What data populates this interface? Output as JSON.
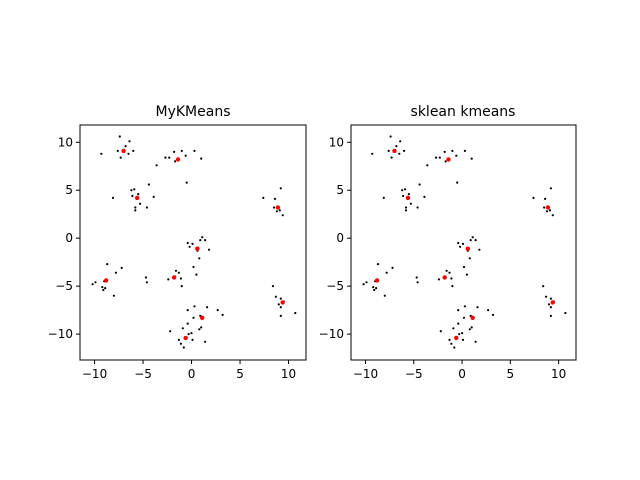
{
  "chart_data": [
    {
      "type": "scatter",
      "title": "MyKMeans",
      "xlabel": "",
      "ylabel": "",
      "xlim": [
        -11.5,
        11.8
      ],
      "ylim": [
        -12.7,
        11.8
      ],
      "xticks": [
        -10,
        -5,
        0,
        5,
        10
      ],
      "yticks": [
        10,
        5,
        0,
        -5,
        -10
      ],
      "grid": false,
      "series": [
        {
          "color": "#000000",
          "points": [
            [
              -7.4,
              10.6
            ],
            [
              -6.4,
              10.1
            ],
            [
              -9.3,
              8.8
            ],
            [
              -7.6,
              9.1
            ],
            [
              -7.1,
              9.1
            ],
            [
              -6.8,
              9.6
            ],
            [
              -6.5,
              8.8
            ],
            [
              -7.3,
              8.4
            ],
            [
              -6.0,
              9.1
            ],
            [
              -2.7,
              8.4
            ],
            [
              -2.3,
              8.4
            ],
            [
              -1.8,
              9.0
            ],
            [
              -1.4,
              8.3
            ],
            [
              -1.0,
              9.1
            ],
            [
              -0.6,
              8.6
            ],
            [
              -1.7,
              8.0
            ],
            [
              -3.6,
              7.6
            ],
            [
              0.3,
              9.1
            ],
            [
              1.0,
              8.3
            ],
            [
              -0.5,
              5.8
            ],
            [
              -5.9,
              5.1
            ],
            [
              -6.2,
              5.0
            ],
            [
              -5.5,
              4.6
            ],
            [
              -4.4,
              5.6
            ],
            [
              -6.1,
              4.4
            ],
            [
              -3.9,
              4.3
            ],
            [
              -5.3,
              3.6
            ],
            [
              -5.8,
              3.2
            ],
            [
              -4.6,
              3.2
            ],
            [
              -5.8,
              2.9
            ],
            [
              -8.1,
              4.2
            ],
            [
              7.4,
              4.2
            ],
            [
              9.2,
              5.2
            ],
            [
              8.6,
              4.1
            ],
            [
              8.5,
              3.2
            ],
            [
              8.8,
              2.8
            ],
            [
              9.1,
              2.9
            ],
            [
              9.4,
              2.4
            ],
            [
              -0.4,
              -0.5
            ],
            [
              0.1,
              -0.6
            ],
            [
              0.9,
              -0.2
            ],
            [
              1.1,
              0.1
            ],
            [
              1.4,
              -0.2
            ],
            [
              -0.2,
              -0.9
            ],
            [
              0.6,
              -1.3
            ],
            [
              1.8,
              -1.2
            ],
            [
              0.8,
              -2.1
            ],
            [
              0.2,
              -3.0
            ],
            [
              0.5,
              -3.8
            ],
            [
              -1.6,
              -3.4
            ],
            [
              -1.3,
              -3.6
            ],
            [
              -1.7,
              -4.0
            ],
            [
              -1.1,
              -4.2
            ],
            [
              -2.4,
              -4.3
            ],
            [
              -1.0,
              -5.0
            ],
            [
              -8.7,
              -2.7
            ],
            [
              -7.2,
              -3.1
            ],
            [
              -7.8,
              -3.6
            ],
            [
              -9.9,
              -4.6
            ],
            [
              -10.2,
              -4.8
            ],
            [
              -9.0,
              -4.5
            ],
            [
              -9.2,
              -5.1
            ],
            [
              -8.9,
              -5.2
            ],
            [
              -9.1,
              -5.4
            ],
            [
              -8.0,
              -6.0
            ],
            [
              -4.7,
              -4.1
            ],
            [
              -4.6,
              -4.6
            ],
            [
              8.4,
              -5.0
            ],
            [
              8.7,
              -6.1
            ],
            [
              9.2,
              -6.3
            ],
            [
              9.0,
              -6.9
            ],
            [
              9.5,
              -6.6
            ],
            [
              9.2,
              -7.2
            ],
            [
              9.2,
              -8.1
            ],
            [
              10.7,
              -7.8
            ],
            [
              -0.4,
              -7.5
            ],
            [
              0.3,
              -7.1
            ],
            [
              0.9,
              -8.1
            ],
            [
              1.6,
              -7.2
            ],
            [
              0.2,
              -8.3
            ],
            [
              -0.4,
              -8.9
            ],
            [
              -0.9,
              -9.4
            ],
            [
              -2.2,
              -9.7
            ],
            [
              1.0,
              -9.3
            ],
            [
              0.8,
              -9.5
            ],
            [
              0.0,
              -9.9
            ],
            [
              2.7,
              -7.5
            ],
            [
              3.2,
              -8.0
            ],
            [
              -1.3,
              -10.6
            ],
            [
              -0.6,
              -10.4
            ],
            [
              -1.1,
              -11.0
            ],
            [
              -0.8,
              -11.4
            ],
            [
              0.1,
              -10.6
            ],
            [
              1.4,
              -10.8
            ],
            [
              -0.3,
              -10.0
            ]
          ]
        },
        {
          "color": "#ff0000",
          "points": [
            [
              -7.0,
              9.1
            ],
            [
              -1.4,
              8.2
            ],
            [
              -5.6,
              4.2
            ],
            [
              8.9,
              3.2
            ],
            [
              0.6,
              -1.1
            ],
            [
              -1.8,
              -4.1
            ],
            [
              -8.8,
              -4.4
            ],
            [
              9.4,
              -6.7
            ],
            [
              1.1,
              -8.3
            ],
            [
              -0.6,
              -10.4
            ]
          ]
        }
      ]
    },
    {
      "type": "scatter",
      "title": "sklean kmeans",
      "xlabel": "",
      "ylabel": "",
      "xlim": [
        -11.5,
        11.8
      ],
      "ylim": [
        -12.7,
        11.8
      ],
      "xticks": [
        -10,
        -5,
        0,
        5,
        10
      ],
      "yticks": [
        10,
        5,
        0,
        -5,
        -10
      ],
      "grid": false,
      "series": [
        {
          "color": "#000000",
          "points": [
            [
              -7.4,
              10.6
            ],
            [
              -6.4,
              10.1
            ],
            [
              -9.3,
              8.8
            ],
            [
              -7.6,
              9.1
            ],
            [
              -7.1,
              9.1
            ],
            [
              -6.8,
              9.6
            ],
            [
              -6.5,
              8.8
            ],
            [
              -7.3,
              8.4
            ],
            [
              -6.0,
              9.1
            ],
            [
              -2.7,
              8.4
            ],
            [
              -2.3,
              8.4
            ],
            [
              -1.8,
              9.0
            ],
            [
              -1.4,
              8.3
            ],
            [
              -1.0,
              9.1
            ],
            [
              -0.6,
              8.6
            ],
            [
              -1.7,
              8.0
            ],
            [
              -3.6,
              7.6
            ],
            [
              0.3,
              9.1
            ],
            [
              1.0,
              8.3
            ],
            [
              -0.5,
              5.8
            ],
            [
              -5.9,
              5.1
            ],
            [
              -6.2,
              5.0
            ],
            [
              -5.5,
              4.6
            ],
            [
              -4.4,
              5.6
            ],
            [
              -6.1,
              4.4
            ],
            [
              -3.9,
              4.3
            ],
            [
              -5.3,
              3.6
            ],
            [
              -5.8,
              3.2
            ],
            [
              -4.6,
              3.2
            ],
            [
              -5.8,
              2.9
            ],
            [
              -8.1,
              4.2
            ],
            [
              7.4,
              4.2
            ],
            [
              9.2,
              5.2
            ],
            [
              8.6,
              4.1
            ],
            [
              8.5,
              3.2
            ],
            [
              8.8,
              2.8
            ],
            [
              9.1,
              2.9
            ],
            [
              9.4,
              2.4
            ],
            [
              -0.4,
              -0.5
            ],
            [
              0.1,
              -0.6
            ],
            [
              0.9,
              -0.2
            ],
            [
              1.1,
              0.1
            ],
            [
              1.4,
              -0.2
            ],
            [
              -0.2,
              -0.9
            ],
            [
              0.6,
              -1.3
            ],
            [
              1.8,
              -1.2
            ],
            [
              0.8,
              -2.1
            ],
            [
              0.2,
              -3.0
            ],
            [
              0.5,
              -3.8
            ],
            [
              -1.6,
              -3.4
            ],
            [
              -1.3,
              -3.6
            ],
            [
              -1.7,
              -4.0
            ],
            [
              -1.1,
              -4.2
            ],
            [
              -2.4,
              -4.3
            ],
            [
              -1.0,
              -5.0
            ],
            [
              -8.7,
              -2.7
            ],
            [
              -7.2,
              -3.1
            ],
            [
              -7.8,
              -3.6
            ],
            [
              -9.9,
              -4.6
            ],
            [
              -10.2,
              -4.8
            ],
            [
              -9.0,
              -4.5
            ],
            [
              -9.2,
              -5.1
            ],
            [
              -8.9,
              -5.2
            ],
            [
              -9.1,
              -5.4
            ],
            [
              -8.0,
              -6.0
            ],
            [
              -4.7,
              -4.1
            ],
            [
              -4.6,
              -4.6
            ],
            [
              8.4,
              -5.0
            ],
            [
              8.7,
              -6.1
            ],
            [
              9.2,
              -6.3
            ],
            [
              9.0,
              -6.9
            ],
            [
              9.5,
              -6.6
            ],
            [
              9.2,
              -7.2
            ],
            [
              9.2,
              -8.1
            ],
            [
              10.7,
              -7.8
            ],
            [
              -0.4,
              -7.5
            ],
            [
              0.3,
              -7.1
            ],
            [
              0.9,
              -8.1
            ],
            [
              1.6,
              -7.2
            ],
            [
              0.2,
              -8.3
            ],
            [
              -0.4,
              -8.9
            ],
            [
              -0.9,
              -9.4
            ],
            [
              -2.2,
              -9.7
            ],
            [
              1.0,
              -9.3
            ],
            [
              0.8,
              -9.5
            ],
            [
              0.0,
              -9.9
            ],
            [
              2.7,
              -7.5
            ],
            [
              3.2,
              -8.0
            ],
            [
              -1.3,
              -10.6
            ],
            [
              -0.6,
              -10.4
            ],
            [
              -1.1,
              -11.0
            ],
            [
              -0.8,
              -11.4
            ],
            [
              0.1,
              -10.6
            ],
            [
              1.4,
              -10.8
            ],
            [
              -0.3,
              -10.0
            ]
          ]
        },
        {
          "color": "#ff0000",
          "points": [
            [
              -7.0,
              9.1
            ],
            [
              -1.4,
              8.2
            ],
            [
              -5.6,
              4.2
            ],
            [
              8.9,
              3.2
            ],
            [
              0.6,
              -1.1
            ],
            [
              -1.8,
              -4.1
            ],
            [
              -8.8,
              -4.4
            ],
            [
              9.4,
              -6.7
            ],
            [
              1.1,
              -8.3
            ],
            [
              -0.6,
              -10.4
            ]
          ]
        }
      ]
    }
  ]
}
